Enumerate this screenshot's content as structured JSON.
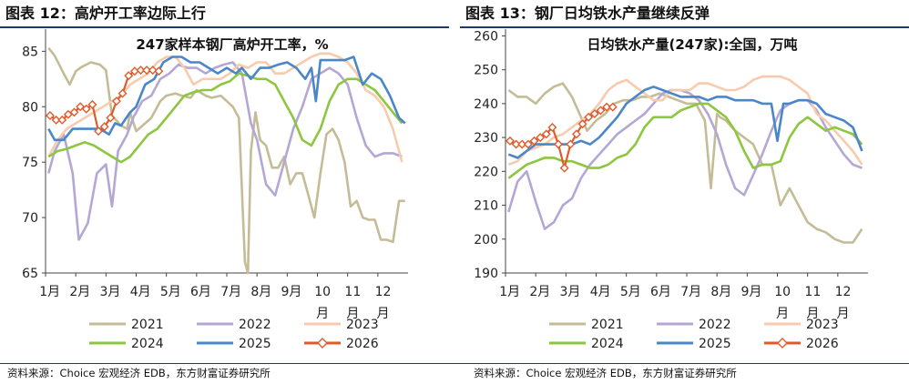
{
  "source_text": "资料来源：Choice 宏观经济 EDB，东方财富证券研究所",
  "chart_data": [
    {
      "type": "line",
      "figure_title": "图表 12：高炉开工率边际上行",
      "title": "247家样本钢厂高炉开工率，%",
      "ylim": [
        65,
        87
      ],
      "yticks": [
        65,
        70,
        75,
        80,
        85
      ],
      "xlim": [
        0,
        12
      ],
      "xticks": [
        "1月",
        "2月",
        "3月",
        "4月",
        "5月",
        "6月",
        "7月",
        "8月",
        "9月",
        "10月",
        "11月",
        "12月"
      ],
      "legend_position": "bottom",
      "series": [
        {
          "name": "2021",
          "color": "#c4bc96",
          "x": [
            0.1,
            0.3,
            0.6,
            0.8,
            1.0,
            1.2,
            1.5,
            1.8,
            2.0,
            2.2,
            2.5,
            2.7,
            2.8,
            3.0,
            3.3,
            3.5,
            3.8,
            4.0,
            4.3,
            4.5,
            4.8,
            5.0,
            5.3,
            5.5,
            5.8,
            6.0,
            6.2,
            6.4,
            6.6,
            6.7,
            6.8,
            6.95,
            7.1,
            7.3,
            7.5,
            7.7,
            7.9,
            8.1,
            8.3,
            8.5,
            8.7,
            8.9,
            9.1,
            9.3,
            9.5,
            9.7,
            9.9,
            10.1,
            10.3,
            10.5,
            10.7,
            10.9,
            11.1,
            11.3,
            11.5,
            11.7,
            11.9
          ],
          "y": [
            85.3,
            84.6,
            83.0,
            82.0,
            83.2,
            83.6,
            84.0,
            83.8,
            83.3,
            79.2,
            78.3,
            78.0,
            79.5,
            77.8,
            78.5,
            79.0,
            80.5,
            81.0,
            81.2,
            81.0,
            80.8,
            81.5,
            81.0,
            80.8,
            81.0,
            80.5,
            80.0,
            79.0,
            66.0,
            65.0,
            76.0,
            79.5,
            77.0,
            76.5,
            74.5,
            74.5,
            75.5,
            73.0,
            74.0,
            74.0,
            72.0,
            70.0,
            74.0,
            77.5,
            78.0,
            77.0,
            75.0,
            71.0,
            71.5,
            70.0,
            69.8,
            69.8,
            68.0,
            68.0,
            67.8,
            71.5,
            71.5
          ]
        },
        {
          "name": "2022",
          "color": "#b4a7d6",
          "x": [
            0.1,
            0.3,
            0.6,
            0.9,
            1.1,
            1.4,
            1.7,
            2.0,
            2.2,
            2.4,
            2.7,
            2.9,
            3.2,
            3.5,
            3.8,
            4.1,
            4.4,
            4.7,
            5.0,
            5.3,
            5.6,
            5.9,
            6.2,
            6.5,
            6.8,
            7.0,
            7.3,
            7.6,
            7.9,
            8.2,
            8.5,
            8.8,
            9.1,
            9.4,
            9.7,
            10.0,
            10.3,
            10.6,
            10.9,
            11.2,
            11.5,
            11.8
          ],
          "y": [
            74.0,
            76.0,
            77.5,
            74.0,
            68.0,
            69.5,
            74.0,
            74.8,
            71.0,
            76.0,
            77.5,
            79.0,
            80.5,
            81.0,
            82.5,
            83.0,
            83.8,
            83.5,
            83.5,
            83.0,
            83.5,
            83.8,
            84.0,
            83.0,
            78.5,
            77.0,
            73.0,
            72.0,
            75.0,
            78.0,
            80.0,
            82.5,
            83.0,
            83.5,
            83.0,
            82.0,
            79.0,
            76.5,
            75.5,
            75.8,
            75.8,
            75.5
          ]
        },
        {
          "name": "2023",
          "color": "#f8cbad",
          "x": [
            0.1,
            0.4,
            0.7,
            1.0,
            1.3,
            1.6,
            1.9,
            2.2,
            2.5,
            2.8,
            3.1,
            3.4,
            3.7,
            4.0,
            4.3,
            4.6,
            4.9,
            5.2,
            5.5,
            5.8,
            6.1,
            6.4,
            6.7,
            7.0,
            7.3,
            7.6,
            7.9,
            8.2,
            8.5,
            8.8,
            9.1,
            9.4,
            9.7,
            10.0,
            10.3,
            10.6,
            10.9,
            11.2,
            11.5,
            11.8
          ],
          "y": [
            75.5,
            77.0,
            78.0,
            78.5,
            79.0,
            79.5,
            80.0,
            80.5,
            81.0,
            82.0,
            82.5,
            83.0,
            84.0,
            84.5,
            84.5,
            83.5,
            82.0,
            82.5,
            82.5,
            82.5,
            83.0,
            83.8,
            83.5,
            84.0,
            84.0,
            83.0,
            83.0,
            83.5,
            84.0,
            84.5,
            84.8,
            84.8,
            84.5,
            84.0,
            83.0,
            81.5,
            81.0,
            80.0,
            78.0,
            75.0
          ]
        },
        {
          "name": "2024",
          "color": "#8dc63f",
          "x": [
            0.1,
            0.4,
            0.7,
            1.0,
            1.3,
            1.6,
            1.9,
            2.2,
            2.5,
            2.8,
            3.1,
            3.4,
            3.7,
            4.0,
            4.3,
            4.6,
            4.9,
            5.2,
            5.5,
            5.8,
            6.1,
            6.4,
            6.7,
            7.0,
            7.3,
            7.6,
            7.9,
            8.2,
            8.5,
            8.8,
            9.1,
            9.4,
            9.7,
            10.0,
            10.3,
            10.6,
            10.9,
            11.2,
            11.5,
            11.8
          ],
          "y": [
            75.5,
            76.0,
            76.2,
            76.5,
            76.8,
            76.5,
            76.0,
            75.5,
            75.0,
            75.5,
            76.5,
            77.5,
            78.0,
            79.0,
            80.0,
            81.0,
            81.3,
            81.5,
            81.5,
            82.0,
            82.3,
            83.0,
            82.8,
            82.5,
            82.5,
            82.0,
            80.5,
            79.0,
            77.0,
            76.5,
            78.0,
            80.5,
            82.0,
            82.5,
            82.5,
            82.0,
            81.5,
            80.5,
            79.5,
            78.5
          ]
        },
        {
          "name": "2025",
          "color": "#4a86c8",
          "x": [
            0.1,
            0.3,
            0.6,
            0.9,
            1.2,
            1.5,
            1.8,
            2.1,
            2.3,
            2.5,
            2.8,
            3.0,
            3.3,
            3.6,
            3.9,
            4.2,
            4.5,
            4.8,
            5.1,
            5.4,
            5.7,
            6.0,
            6.3,
            6.5,
            6.8,
            7.1,
            7.4,
            7.7,
            8.0,
            8.3,
            8.6,
            8.8,
            8.95,
            9.1,
            9.3,
            9.6,
            9.9,
            10.2,
            10.5,
            10.8,
            11.1,
            11.4,
            11.7,
            11.9
          ],
          "y": [
            78.0,
            77.0,
            77.0,
            78.0,
            78.0,
            78.0,
            78.0,
            77.5,
            78.5,
            78.3,
            79.5,
            80.0,
            82.0,
            82.5,
            84.0,
            84.5,
            84.5,
            84.0,
            84.0,
            83.5,
            83.0,
            83.5,
            83.0,
            83.5,
            82.5,
            83.5,
            83.5,
            83.8,
            84.0,
            83.5,
            82.5,
            83.5,
            80.5,
            84.2,
            84.2,
            84.2,
            84.2,
            84.5,
            82.0,
            83.0,
            82.5,
            81.0,
            79.0,
            78.5
          ]
        },
        {
          "name": "2026",
          "color": "#e15a2b",
          "x": [
            0.15,
            0.35,
            0.55,
            0.75,
            0.95,
            1.15,
            1.35,
            1.55,
            1.75,
            1.95,
            2.15,
            2.35,
            2.55,
            2.75,
            2.95,
            3.15,
            3.35,
            3.55,
            3.75
          ],
          "y": [
            79.2,
            78.8,
            78.8,
            79.3,
            79.5,
            80.0,
            79.8,
            80.2,
            77.8,
            78.2,
            79.0,
            80.5,
            81.2,
            82.8,
            83.2,
            83.3,
            83.3,
            83.3,
            83.2
          ]
        }
      ]
    },
    {
      "type": "line",
      "figure_title": "图表 13：钢厂日均铁水产量继续反弹",
      "title": "日均铁水产量(247家):全国，万吨",
      "ylim": [
        190,
        262
      ],
      "yticks": [
        190,
        200,
        210,
        220,
        230,
        240,
        250,
        260
      ],
      "xlim": [
        0,
        12
      ],
      "xticks": [
        "1月",
        "2月",
        "3月",
        "4月",
        "5月",
        "6月",
        "7月",
        "8月",
        "9月",
        "10月",
        "11月",
        "12月"
      ],
      "legend_position": "bottom",
      "series": [
        {
          "name": "2021",
          "color": "#c4bc96",
          "x": [
            0.1,
            0.4,
            0.7,
            1.0,
            1.3,
            1.6,
            1.9,
            2.2,
            2.5,
            2.7,
            3.0,
            3.3,
            3.6,
            3.9,
            4.2,
            4.5,
            4.8,
            5.1,
            5.4,
            5.7,
            6.0,
            6.3,
            6.6,
            6.8,
            7.0,
            7.1,
            7.3,
            7.6,
            7.9,
            8.2,
            8.5,
            8.8,
            9.1,
            9.4,
            9.7,
            10.0,
            10.3,
            10.6,
            10.9,
            11.2,
            11.5,
            11.8
          ],
          "y": [
            244,
            242,
            242,
            240,
            243,
            245,
            246,
            242,
            236,
            232,
            235,
            237,
            240,
            241,
            241,
            242,
            242,
            243,
            242,
            241,
            240,
            240,
            235,
            215,
            237,
            236,
            235,
            232,
            230,
            228,
            222,
            222,
            210,
            215,
            210,
            205,
            203,
            202,
            200,
            199,
            199,
            203
          ]
        },
        {
          "name": "2022",
          "color": "#b4a7d6",
          "x": [
            0.1,
            0.4,
            0.7,
            1.0,
            1.3,
            1.6,
            1.9,
            2.2,
            2.5,
            2.8,
            3.1,
            3.4,
            3.7,
            4.0,
            4.3,
            4.6,
            4.9,
            5.2,
            5.5,
            5.8,
            6.1,
            6.4,
            6.7,
            7.0,
            7.3,
            7.6,
            7.9,
            8.2,
            8.5,
            8.8,
            9.1,
            9.4,
            9.7,
            10.0,
            10.3,
            10.6,
            10.9,
            11.2,
            11.5,
            11.8
          ],
          "y": [
            208,
            217,
            220,
            211,
            203,
            205,
            210,
            212,
            218,
            222,
            225,
            228,
            231,
            233,
            235,
            237,
            240,
            243,
            244,
            244,
            243,
            241,
            237,
            231,
            222,
            215,
            213,
            219,
            225,
            232,
            238,
            240,
            241,
            241,
            238,
            233,
            229,
            225,
            222,
            221
          ]
        },
        {
          "name": "2023",
          "color": "#f8cbad",
          "x": [
            0.1,
            0.4,
            0.7,
            1.0,
            1.3,
            1.6,
            1.9,
            2.2,
            2.5,
            2.8,
            3.1,
            3.4,
            3.7,
            4.0,
            4.3,
            4.6,
            4.9,
            5.2,
            5.5,
            5.8,
            6.1,
            6.4,
            6.7,
            7.0,
            7.3,
            7.6,
            7.9,
            8.2,
            8.5,
            8.8,
            9.1,
            9.4,
            9.7,
            10.0,
            10.3,
            10.6,
            10.9,
            11.2,
            11.5,
            11.8
          ],
          "y": [
            222,
            223,
            226,
            227,
            228,
            230,
            231,
            233,
            235,
            237,
            240,
            244,
            246,
            247,
            245,
            243,
            241,
            241,
            244,
            244,
            244,
            246,
            246,
            245,
            244,
            244,
            245,
            247,
            248,
            248,
            248,
            247,
            245,
            243,
            237,
            235,
            232,
            229,
            226,
            222
          ]
        },
        {
          "name": "2024",
          "color": "#8dc63f",
          "x": [
            0.1,
            0.4,
            0.7,
            1.0,
            1.3,
            1.6,
            1.9,
            2.2,
            2.5,
            2.8,
            3.1,
            3.4,
            3.7,
            4.0,
            4.3,
            4.6,
            4.9,
            5.2,
            5.5,
            5.8,
            6.1,
            6.4,
            6.7,
            7.0,
            7.3,
            7.6,
            7.9,
            8.2,
            8.5,
            8.8,
            9.1,
            9.4,
            9.7,
            10.0,
            10.3,
            10.6,
            10.9,
            11.2,
            11.5,
            11.8
          ],
          "y": [
            218,
            220,
            222,
            223,
            224,
            224,
            223,
            223,
            222,
            221,
            221,
            222,
            224,
            225,
            228,
            233,
            236,
            236,
            236,
            238,
            239,
            240,
            240,
            238,
            236,
            232,
            226,
            221,
            222,
            222,
            223,
            230,
            234,
            236,
            234,
            232,
            233,
            232,
            231,
            228
          ]
        },
        {
          "name": "2025",
          "color": "#4a86c8",
          "x": [
            0.1,
            0.4,
            0.7,
            1.0,
            1.3,
            1.6,
            1.9,
            2.2,
            2.5,
            2.8,
            3.1,
            3.4,
            3.7,
            4.0,
            4.3,
            4.6,
            4.9,
            5.2,
            5.5,
            5.8,
            6.1,
            6.4,
            6.7,
            7.0,
            7.3,
            7.6,
            7.9,
            8.2,
            8.5,
            8.8,
            9.0,
            9.2,
            9.4,
            9.7,
            10.0,
            10.3,
            10.6,
            10.9,
            11.2,
            11.5,
            11.8
          ],
          "y": [
            225,
            224,
            226,
            228,
            228,
            228,
            228,
            228,
            229,
            228,
            230,
            233,
            236,
            240,
            242,
            244,
            245,
            244,
            243,
            242,
            242,
            242,
            241,
            242,
            242,
            241,
            241,
            241,
            240,
            240,
            229,
            240,
            240,
            241,
            241,
            240,
            237,
            236,
            235,
            233,
            226
          ]
        },
        {
          "name": "2026",
          "color": "#e15a2b",
          "x": [
            0.15,
            0.35,
            0.55,
            0.75,
            0.95,
            1.15,
            1.35,
            1.55,
            1.75,
            1.95,
            2.15,
            2.35,
            2.55,
            2.75,
            2.95,
            3.15,
            3.35,
            3.55
          ],
          "y": [
            229,
            228,
            228,
            228,
            229,
            230,
            231,
            233,
            228,
            221,
            228,
            231,
            234,
            236,
            237,
            238,
            239,
            239
          ]
        }
      ]
    }
  ]
}
